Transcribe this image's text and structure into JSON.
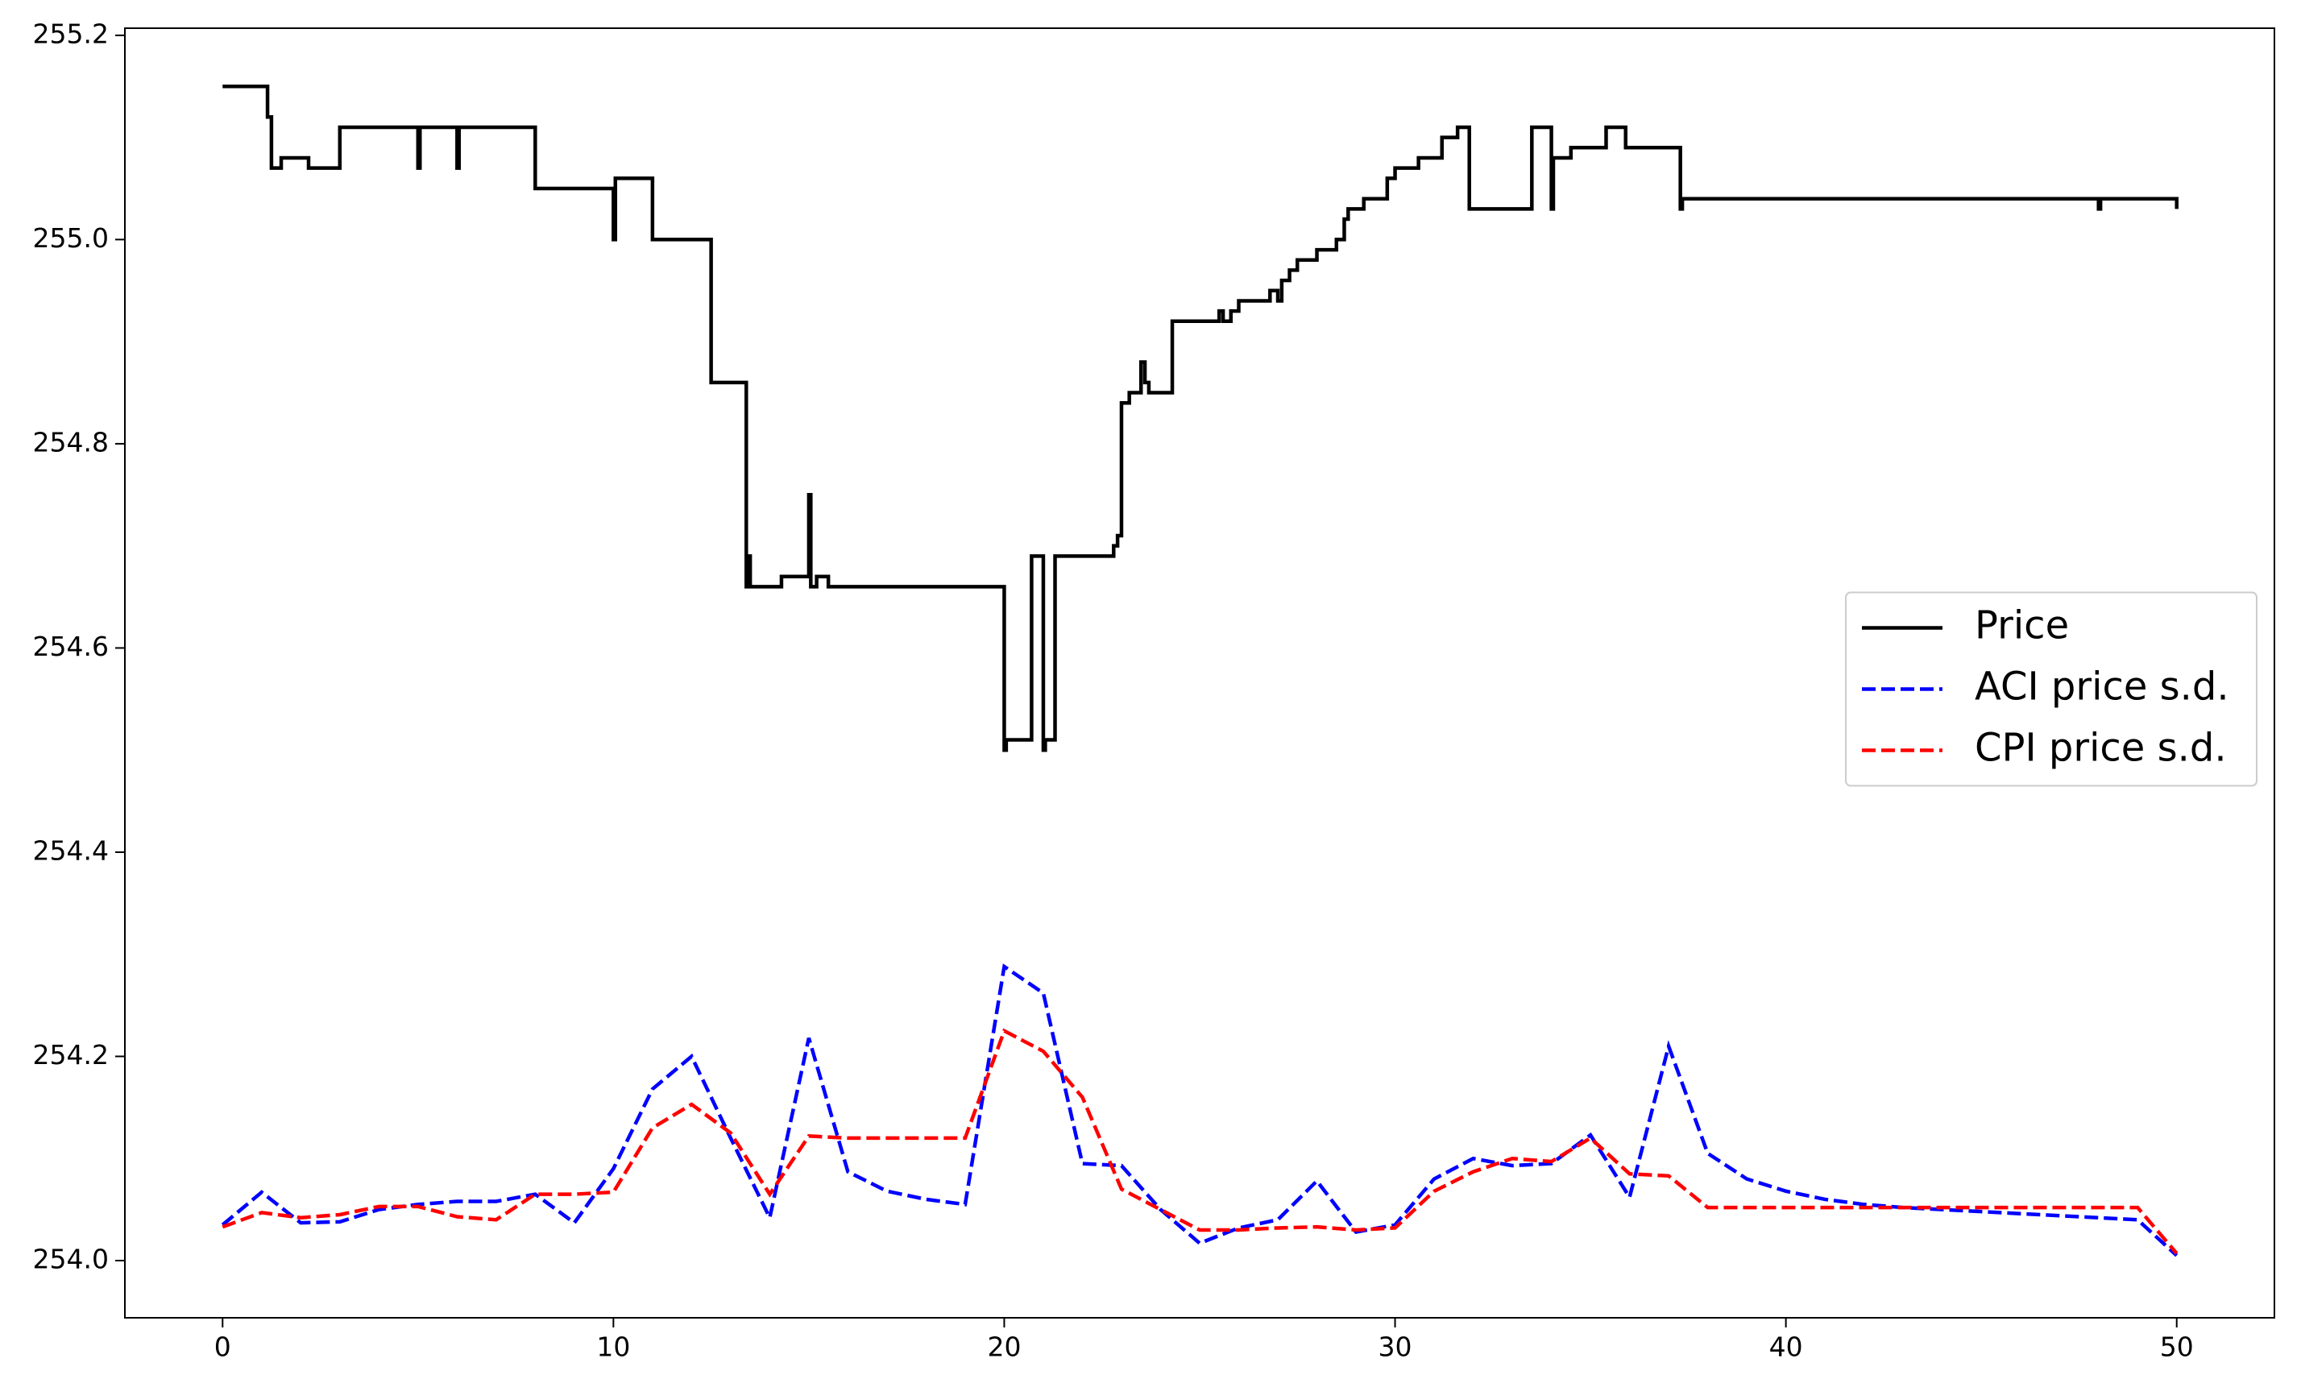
{
  "chart_data": {
    "type": "line",
    "xlim": [
      -2.5,
      52.5
    ],
    "xticks": [
      0,
      10,
      20,
      30,
      40,
      50
    ],
    "ylim": [
      253.944,
      255.207
    ],
    "yticks": [
      {
        "value": 254.0,
        "label": "254.0"
      },
      254.2,
      254.4,
      254.6,
      254.8,
      {
        "value": 255.0,
        "label": "255.0"
      },
      255.2
    ],
    "legend": "center right",
    "series": [
      {
        "name": "Price",
        "color": "#000000",
        "linestyle": "solid",
        "drawstyle": "steps-post",
        "x": [
          0,
          1.15,
          1.25,
          1.5,
          2.2,
          3.0,
          5.0,
          5.05,
          6.0,
          6.05,
          8.0,
          10.0,
          10.05,
          11.0,
          12.5,
          13.4,
          13.45,
          13.5,
          14.3,
          15.0,
          15.05,
          15.2,
          15.5,
          20.0,
          20.05,
          20.7,
          21.0,
          21.05,
          21.3,
          22.8,
          22.9,
          23.0,
          23.2,
          23.5,
          23.6,
          23.7,
          24.3,
          25.5,
          25.6,
          25.8,
          26.0,
          26.8,
          27.0,
          27.1,
          27.3,
          27.5,
          28.0,
          28.5,
          28.7,
          28.8,
          29.2,
          29.8,
          30.0,
          30.6,
          31.2,
          31.6,
          31.9,
          33.5,
          34.0,
          34.05,
          34.5,
          35.4,
          35.9,
          37.3,
          37.35,
          48.0,
          48.05,
          50.0
        ],
        "values": [
          255.15,
          255.12,
          255.07,
          255.08,
          255.07,
          255.11,
          255.07,
          255.11,
          255.07,
          255.11,
          255.05,
          255.0,
          255.06,
          255.0,
          254.86,
          254.66,
          254.69,
          254.66,
          254.67,
          254.75,
          254.66,
          254.67,
          254.66,
          254.5,
          254.51,
          254.69,
          254.5,
          254.51,
          254.69,
          254.7,
          254.71,
          254.84,
          254.85,
          254.88,
          254.86,
          254.85,
          254.92,
          254.93,
          254.92,
          254.93,
          254.94,
          254.95,
          254.94,
          254.96,
          254.97,
          254.98,
          254.99,
          255.0,
          255.02,
          255.03,
          255.04,
          255.06,
          255.07,
          255.08,
          255.1,
          255.11,
          255.03,
          255.11,
          255.03,
          255.08,
          255.09,
          255.11,
          255.09,
          255.03,
          255.04,
          255.03,
          255.04,
          255.03
        ]
      },
      {
        "name": "ACI price s.d.",
        "color": "#0000ff",
        "linestyle": "dashed",
        "x": [
          0,
          1,
          2,
          3,
          4,
          5,
          6,
          7,
          8,
          9,
          10,
          11,
          12,
          13,
          14,
          15,
          16,
          17,
          18,
          19,
          20,
          21,
          22,
          23,
          24,
          25,
          26,
          27,
          28,
          29,
          30,
          31,
          32,
          33,
          34,
          35,
          36,
          37,
          38,
          39,
          40,
          41,
          42,
          43,
          44,
          45,
          46,
          47,
          48,
          49,
          50
        ],
        "values": [
          254.035,
          254.067,
          254.037,
          254.038,
          254.05,
          254.055,
          254.058,
          254.058,
          254.065,
          254.037,
          254.09,
          254.168,
          254.2,
          254.12,
          254.042,
          254.218,
          254.087,
          254.068,
          254.06,
          254.055,
          254.288,
          254.262,
          254.095,
          254.093,
          254.05,
          254.017,
          254.032,
          254.04,
          254.078,
          254.028,
          254.035,
          254.08,
          254.1,
          254.093,
          254.095,
          254.123,
          254.062,
          254.21,
          254.105,
          254.08,
          254.068,
          254.06,
          254.055,
          254.052,
          254.05,
          254.048,
          254.046,
          254.044,
          254.042,
          254.04,
          254.005
        ]
      },
      {
        "name": "CPI price s.d.",
        "color": "#ff0000",
        "linestyle": "dashed",
        "x": [
          0,
          1,
          2,
          3,
          4,
          5,
          6,
          7,
          8,
          9,
          10,
          11,
          12,
          13,
          14,
          15,
          16,
          17,
          18,
          19,
          20,
          21,
          22,
          23,
          24,
          25,
          26,
          27,
          28,
          29,
          30,
          31,
          32,
          33,
          34,
          35,
          36,
          37,
          38,
          39,
          40,
          41,
          42,
          43,
          44,
          45,
          46,
          47,
          48,
          49,
          50
        ],
        "values": [
          254.033,
          254.047,
          254.042,
          254.045,
          254.053,
          254.053,
          254.043,
          254.04,
          254.065,
          254.065,
          254.067,
          254.13,
          254.153,
          254.125,
          254.065,
          254.122,
          254.12,
          254.12,
          254.12,
          254.12,
          254.225,
          254.205,
          254.16,
          254.07,
          254.05,
          254.03,
          254.03,
          254.032,
          254.033,
          254.03,
          254.032,
          254.068,
          254.087,
          254.1,
          254.097,
          254.12,
          254.085,
          254.083,
          254.052,
          254.052,
          254.052,
          254.052,
          254.052,
          254.052,
          254.052,
          254.052,
          254.052,
          254.052,
          254.052,
          254.052,
          254.007
        ]
      }
    ]
  }
}
